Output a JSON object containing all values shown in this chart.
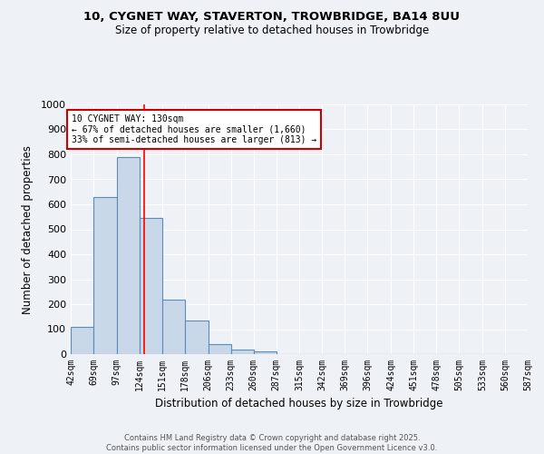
{
  "title_line1": "10, CYGNET WAY, STAVERTON, TROWBRIDGE, BA14 8UU",
  "title_line2": "Size of property relative to detached houses in Trowbridge",
  "xlabel": "Distribution of detached houses by size in Trowbridge",
  "ylabel": "Number of detached properties",
  "bin_edges": [
    42,
    69,
    97,
    124,
    151,
    178,
    206,
    233,
    260,
    287,
    315,
    342,
    369,
    396,
    424,
    451,
    478,
    505,
    533,
    560,
    587
  ],
  "bar_heights": [
    110,
    630,
    790,
    545,
    220,
    135,
    40,
    18,
    10,
    0,
    0,
    0,
    0,
    0,
    0,
    0,
    0,
    0,
    0,
    0
  ],
  "bar_color": "#c8d8e8",
  "bar_edge_color": "#5b8db8",
  "red_line_x": 130,
  "annotation_title": "10 CYGNET WAY: 130sqm",
  "annotation_line1": "← 67% of detached houses are smaller (1,660)",
  "annotation_line2": "33% of semi-detached houses are larger (813) →",
  "annotation_box_color": "#ffffff",
  "annotation_box_edge": "#cc0000",
  "ylim": [
    0,
    1000
  ],
  "yticks": [
    0,
    100,
    200,
    300,
    400,
    500,
    600,
    700,
    800,
    900,
    1000
  ],
  "bg_color": "#eef2f7",
  "grid_color": "#ffffff",
  "footer_line1": "Contains HM Land Registry data © Crown copyright and database right 2025.",
  "footer_line2": "Contains public sector information licensed under the Open Government Licence v3.0."
}
